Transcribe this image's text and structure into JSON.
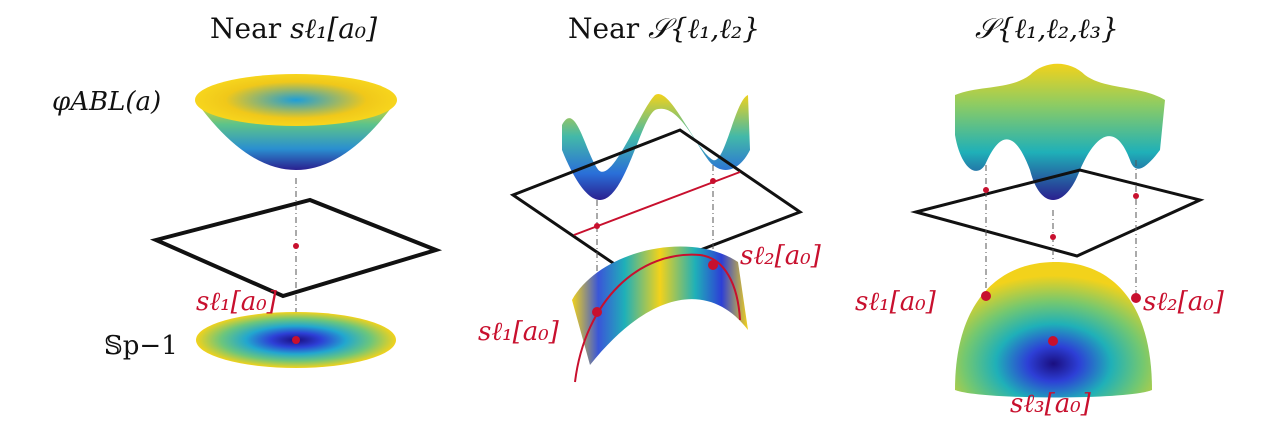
{
  "panels": [
    {
      "title_prefix": "Near ",
      "title_math": "sℓ₁[a₀]"
    },
    {
      "title_prefix": "Near ",
      "title_math": "𝒮{ℓ₁,ℓ₂}"
    },
    {
      "title_prefix": "",
      "title_math": "𝒮{ℓ₁,ℓ₂,ℓ₃}"
    }
  ],
  "labels": {
    "function": "φABL(a)",
    "sphere": "𝕊p−1",
    "p1_point": "sℓ₁[a₀]",
    "p2_left": "sℓ₁[a₀]",
    "p2_right": "sℓ₂[a₀]",
    "p3_left": "sℓ₁[a₀]",
    "p3_right": "sℓ₂[a₀]",
    "p3_bottom": "sℓ₃[a₀]"
  },
  "colors": {
    "accent_red": "#c8102e",
    "surface_high": "#f2d21b",
    "surface_mid": "#1fb0b8",
    "surface_low": "#2a1f8f"
  }
}
